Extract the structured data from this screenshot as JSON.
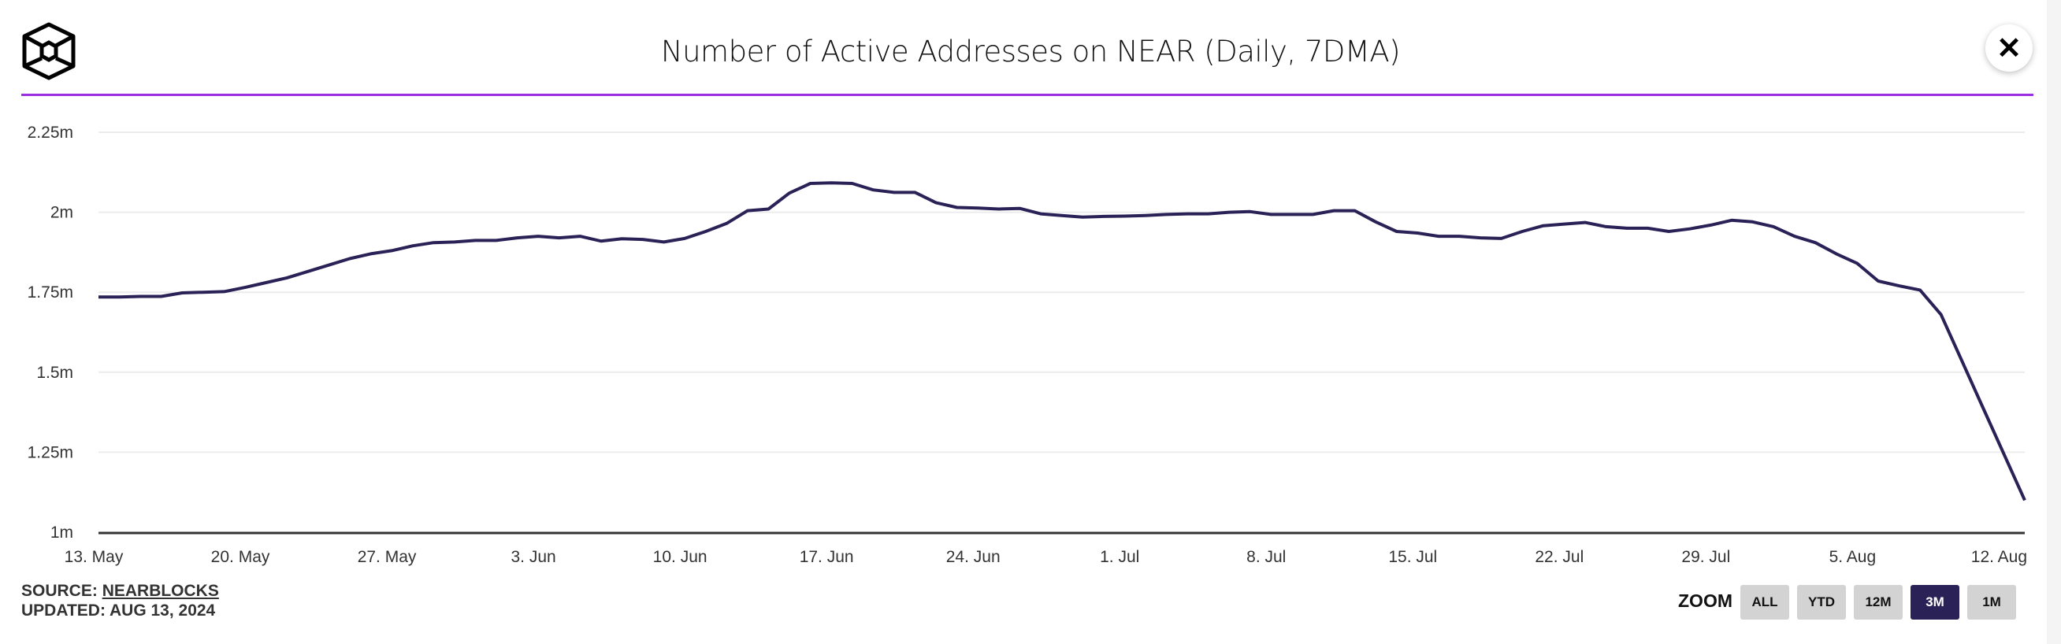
{
  "header": {
    "title": "Number of Active Addresses on NEAR (Daily, 7DMA)",
    "close_icon": "close-x-icon",
    "logo_icon": "cube-hexagon-logo"
  },
  "footer": {
    "source_label": "SOURCE:",
    "source_link": "NEARBLOCKS",
    "updated": "UPDATED: AUG 13, 2024"
  },
  "zoom": {
    "label": "ZOOM",
    "buttons": [
      {
        "label": "ALL",
        "active": false
      },
      {
        "label": "YTD",
        "active": false
      },
      {
        "label": "12M",
        "active": false
      },
      {
        "label": "3M",
        "active": true
      },
      {
        "label": "1M",
        "active": false
      }
    ]
  },
  "colors": {
    "line": "#2a2157",
    "accent_rule": "#9b2ee0",
    "grid": "#ececec",
    "button": "#d3d3d3",
    "button_active": "#2a2157"
  },
  "chart_data": {
    "type": "line",
    "title": "Number of Active Addresses on NEAR (Daily, 7DMA)",
    "xlabel": "",
    "ylabel": "",
    "x_start": "2024-05-13",
    "x_end": "2024-08-13",
    "x_interval": "daily",
    "ylim": [
      1000000,
      2250000
    ],
    "yticks": [
      1000000,
      1250000,
      1500000,
      1750000,
      2000000,
      2250000
    ],
    "ytick_labels": [
      "1m",
      "1.25m",
      "1.5m",
      "1.75m",
      "2m",
      "2.25m"
    ],
    "xticks": [
      "2024-05-13",
      "2024-05-20",
      "2024-05-27",
      "2024-06-03",
      "2024-06-10",
      "2024-06-17",
      "2024-06-24",
      "2024-07-01",
      "2024-07-08",
      "2024-07-15",
      "2024-07-22",
      "2024-07-29",
      "2024-08-05",
      "2024-08-12"
    ],
    "xtick_labels": [
      "13. May",
      "20. May",
      "27. May",
      "3. Jun",
      "10. Jun",
      "17. Jun",
      "24. Jun",
      "1. Jul",
      "8. Jul",
      "15. Jul",
      "22. Jul",
      "29. Jul",
      "5. Aug",
      "12. Aug"
    ],
    "grid": true,
    "legend": "none",
    "values": [
      1735000,
      1735000,
      1737000,
      1737000,
      1748000,
      1750000,
      1752000,
      1765000,
      1780000,
      1795000,
      1815000,
      1835000,
      1855000,
      1870000,
      1880000,
      1895000,
      1905000,
      1907000,
      1912000,
      1912000,
      1920000,
      1925000,
      1920000,
      1925000,
      1910000,
      1917000,
      1915000,
      1907000,
      1918000,
      1940000,
      1965000,
      2005000,
      2010000,
      2060000,
      2090000,
      2092000,
      2090000,
      2070000,
      2062000,
      2062000,
      2030000,
      2015000,
      2013000,
      2010000,
      2012000,
      1995000,
      1990000,
      1985000,
      1987000,
      1988000,
      1990000,
      1993000,
      1995000,
      1995000,
      2000000,
      2002000,
      1993000,
      1993000,
      1993000,
      2005000,
      2005000,
      1970000,
      1940000,
      1935000,
      1925000,
      1925000,
      1920000,
      1918000,
      1940000,
      1958000,
      1963000,
      1968000,
      1955000,
      1950000,
      1950000,
      1940000,
      1948000,
      1960000,
      1975000,
      1970000,
      1955000,
      1925000,
      1905000,
      1870000,
      1840000,
      1785000,
      1770000,
      1757000,
      1680000,
      1535000,
      1390000,
      1245000,
      1100000
    ]
  }
}
